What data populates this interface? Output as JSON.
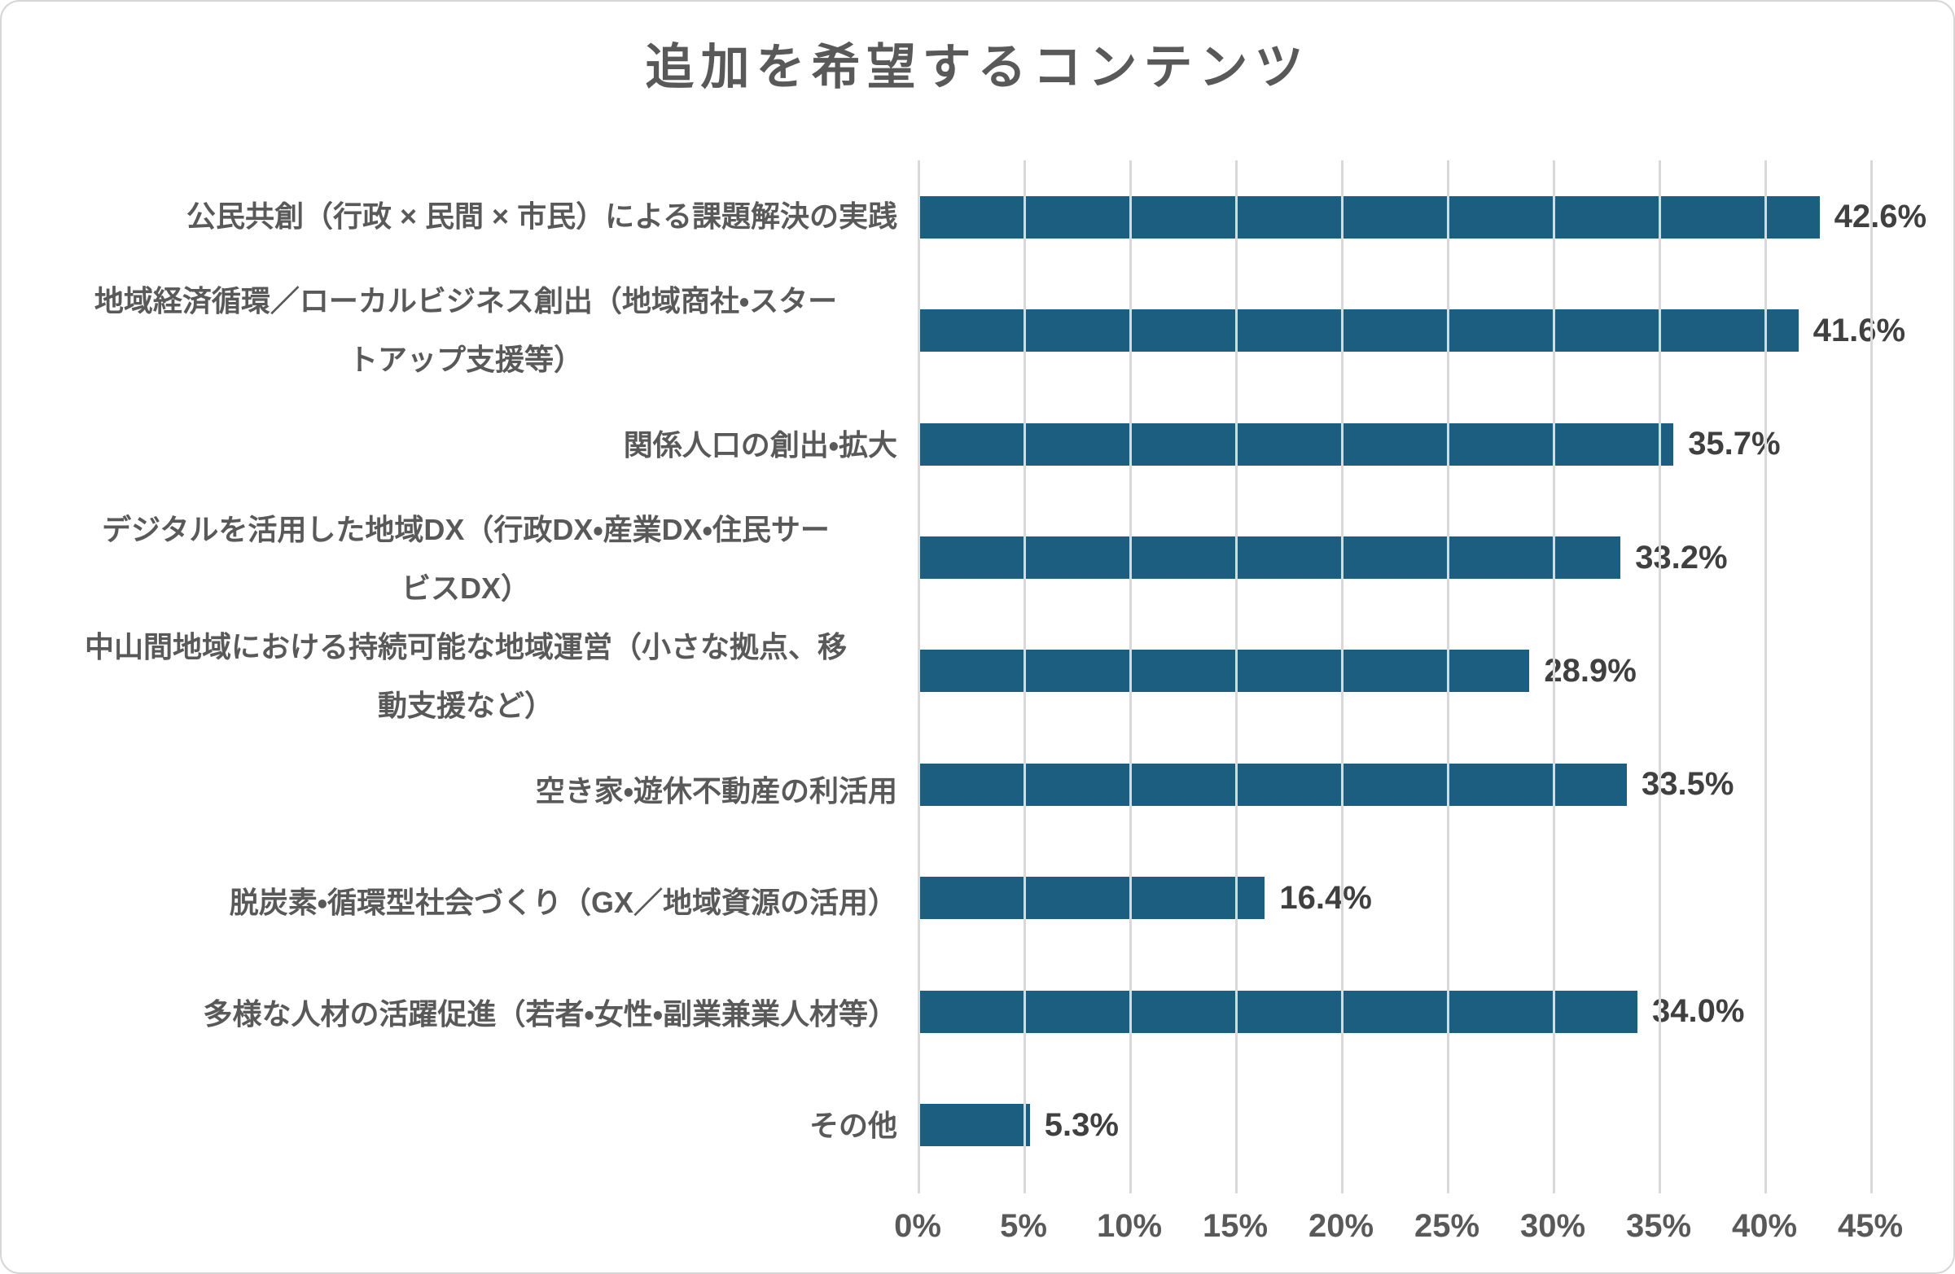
{
  "title": "追加を希望するコンテンツ",
  "colors": {
    "bar": "#1b5e7f",
    "gridline": "#d9d9d9",
    "title_text": "#595959",
    "category_text": "#595959",
    "value_text": "#404040",
    "card_border": "#d6d6d6",
    "background": "#ffffff"
  },
  "chart_data": {
    "type": "bar",
    "orientation": "horizontal",
    "title": "追加を希望するコンテンツ",
    "xlabel": "",
    "ylabel": "",
    "xlim": [
      0,
      45
    ],
    "grid": true,
    "legend": false,
    "x_ticks": [
      "0%",
      "5%",
      "10%",
      "15%",
      "20%",
      "25%",
      "30%",
      "35%",
      "40%",
      "45%"
    ],
    "x_tick_values": [
      0,
      5,
      10,
      15,
      20,
      25,
      30,
      35,
      40,
      45
    ],
    "categories": [
      "公民共創（行政 × 民間 × 市民）による課題解決の実践",
      "地域経済循環／ローカルビジネス創出（地域商社・スタートアップ支援等）",
      "関係人口の創出・拡大",
      "デジタルを活用した地域DX（行政DX・産業DX・住民サービスDX）",
      "中山間地域における持続可能な地域運営（小さな拠点、移動支援など）",
      "空き家・遊休不動産の利活用",
      "脱炭素・循環型社会づくり（GX／地域資源の活用）",
      "多様な人材の活躍促進（若者・女性・副業兼業人材等）",
      "その他"
    ],
    "category_lines": [
      [
        "公民共創（行政 × 民間 × 市民）による課題解決の実践"
      ],
      [
        "地域経済循環／ローカルビジネス創出（地域商社・スター",
        "トアップ支援等）"
      ],
      [
        "関係人口の創出・拡大"
      ],
      [
        "デジタルを活用した地域DX（行政DX・産業DX・住民サー",
        "ビスDX）"
      ],
      [
        "中山間地域における持続可能な地域運営（小さな拠点、移",
        "動支援など）"
      ],
      [
        "空き家・遊休不動産の利活用"
      ],
      [
        "脱炭素・循環型社会づくり（GX／地域資源の活用）"
      ],
      [
        "多様な人材の活躍促進（若者・女性・副業兼業人材等）"
      ],
      [
        "その他"
      ]
    ],
    "values": [
      42.6,
      41.6,
      35.7,
      33.2,
      28.9,
      33.5,
      16.4,
      34.0,
      5.3
    ],
    "value_labels": [
      "42.6%",
      "41.6%",
      "35.7%",
      "33.2%",
      "28.9%",
      "33.5%",
      "16.4%",
      "34.0%",
      "5.3%"
    ]
  }
}
